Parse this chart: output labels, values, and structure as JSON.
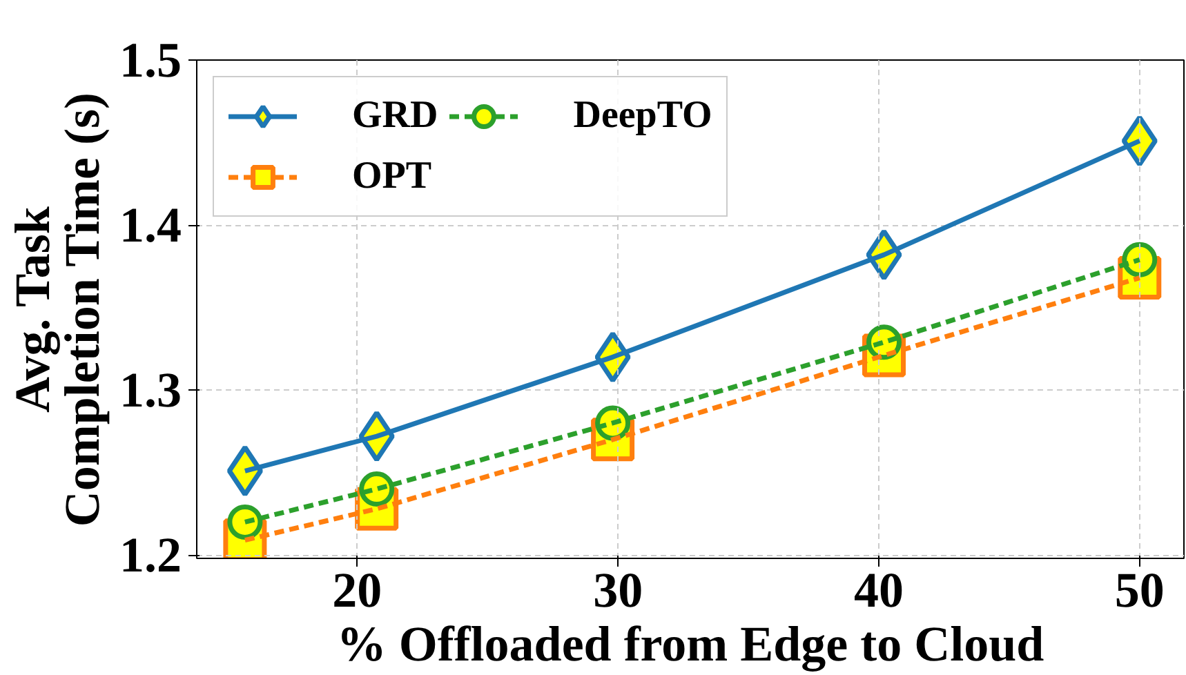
{
  "chart_data": {
    "type": "line",
    "xlabel": "% Offloaded from Edge to Cloud",
    "ylabel": "Avg. Task\nCompletion Time (s)",
    "x": [
      15.7,
      20.75,
      29.8,
      40.2,
      50
    ],
    "series": [
      {
        "name": "GRD",
        "color": "#1f77b4",
        "marker": "diamond",
        "line_style": "solid",
        "values": [
          1.251,
          1.272,
          1.32,
          1.382,
          1.451
        ]
      },
      {
        "name": "OPT",
        "color": "#ff7f0e",
        "marker": "square",
        "line_style": "dashed",
        "values": [
          1.209,
          1.228,
          1.27,
          1.321,
          1.368
        ]
      },
      {
        "name": "DeepTO",
        "color": "#2ca02c",
        "marker": "circle",
        "line_style": "dashed",
        "values": [
          1.22,
          1.24,
          1.28,
          1.329,
          1.379
        ]
      }
    ],
    "xlim": [
      13.85,
      51.7
    ],
    "ylim": [
      1.198,
      1.5
    ],
    "xticks": [
      20,
      30,
      40,
      50
    ],
    "yticks": [
      1.2,
      1.3,
      1.4,
      1.5
    ],
    "grid": true,
    "legend": "top left"
  }
}
